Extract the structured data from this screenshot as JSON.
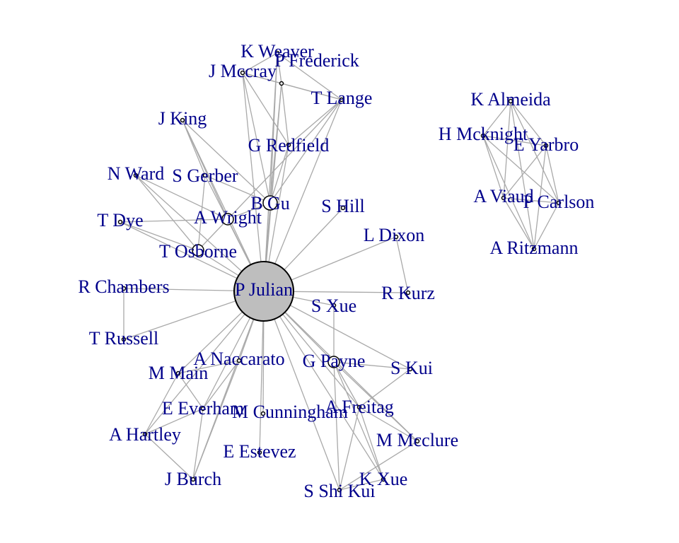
{
  "colors": {
    "edge": "#a9a9a9",
    "label": "#00008b",
    "hub_fill": "#bebebe",
    "node_fill": "#ffffff",
    "node_stroke": "#000000"
  },
  "nodes": [
    {
      "id": "pjulian",
      "label": "P Julian",
      "hub": true
    },
    {
      "id": "kweaver",
      "label": "K Weaver"
    },
    {
      "id": "pfrederick",
      "label": "P Frederick"
    },
    {
      "id": "jmccray",
      "label": "J Mccray"
    },
    {
      "id": "tlange",
      "label": "T Lange"
    },
    {
      "id": "jking",
      "label": "J King"
    },
    {
      "id": "gredfield",
      "label": "G Redfield"
    },
    {
      "id": "nward",
      "label": "N Ward"
    },
    {
      "id": "sgerber",
      "label": "S Gerber"
    },
    {
      "id": "bgu",
      "label": "B Gu"
    },
    {
      "id": "shill",
      "label": "S Hill"
    },
    {
      "id": "tdye",
      "label": "T Dye"
    },
    {
      "id": "awright",
      "label": "A Wright"
    },
    {
      "id": "ldixon",
      "label": "L Dixon"
    },
    {
      "id": "tosborne",
      "label": "T Osborne"
    },
    {
      "id": "rchambers",
      "label": "R Chambers"
    },
    {
      "id": "rkurz",
      "label": "R Kurz"
    },
    {
      "id": "sxue",
      "label": "S Xue"
    },
    {
      "id": "trussell",
      "label": "T Russell"
    },
    {
      "id": "anaccarato",
      "label": "A Naccarato"
    },
    {
      "id": "gpayne",
      "label": "G Payne"
    },
    {
      "id": "skui",
      "label": "S Kui"
    },
    {
      "id": "mmain",
      "label": "M Main"
    },
    {
      "id": "eeverham",
      "label": "E Everham"
    },
    {
      "id": "mcunningham",
      "label": "M Cunningham"
    },
    {
      "id": "afreitag",
      "label": "A Freitag"
    },
    {
      "id": "ahartley",
      "label": "A Hartley"
    },
    {
      "id": "mmcclure",
      "label": "M Mcclure"
    },
    {
      "id": "eestevez",
      "label": "E Estevez"
    },
    {
      "id": "kxue",
      "label": "K Xue"
    },
    {
      "id": "jburch",
      "label": "J Burch"
    },
    {
      "id": "sshikui",
      "label": "S Shi Kui"
    },
    {
      "id": "kalmeida",
      "label": "K Almeida"
    },
    {
      "id": "hmcknight",
      "label": "H Mcknight"
    },
    {
      "id": "eyarbro",
      "label": "E Yarbro"
    },
    {
      "id": "aviaud",
      "label": "A Viaud"
    },
    {
      "id": "pcarlson",
      "label": "P Carlson"
    },
    {
      "id": "aritzmann",
      "label": "A Ritzmann"
    }
  ],
  "edges": [
    [
      "pjulian",
      "jmccray"
    ],
    [
      "pjulian",
      "kweaver"
    ],
    [
      "pjulian",
      "pfrederick"
    ],
    [
      "pjulian",
      "tlange"
    ],
    [
      "pjulian",
      "gredfield"
    ],
    [
      "pjulian",
      "bgu"
    ],
    [
      "pjulian",
      "sgerber"
    ],
    [
      "pjulian",
      "jking"
    ],
    [
      "pjulian",
      "nward"
    ],
    [
      "pjulian",
      "tdye"
    ],
    [
      "pjulian",
      "awright"
    ],
    [
      "pjulian",
      "tosborne"
    ],
    [
      "pjulian",
      "shill"
    ],
    [
      "pjulian",
      "ldixon"
    ],
    [
      "pjulian",
      "rkurz"
    ],
    [
      "pjulian",
      "rchambers"
    ],
    [
      "pjulian",
      "sxue"
    ],
    [
      "pjulian",
      "trussell"
    ],
    [
      "pjulian",
      "anaccarato"
    ],
    [
      "pjulian",
      "gpayne"
    ],
    [
      "pjulian",
      "skui"
    ],
    [
      "pjulian",
      "mmain"
    ],
    [
      "pjulian",
      "eeverham"
    ],
    [
      "pjulian",
      "mcunningham"
    ],
    [
      "pjulian",
      "afreitag"
    ],
    [
      "pjulian",
      "ahartley"
    ],
    [
      "pjulian",
      "mmcclure"
    ],
    [
      "pjulian",
      "eestevez"
    ],
    [
      "pjulian",
      "kxue"
    ],
    [
      "pjulian",
      "jburch"
    ],
    [
      "pjulian",
      "sshikui"
    ],
    [
      "jmccray",
      "kweaver"
    ],
    [
      "jmccray",
      "pfrederick"
    ],
    [
      "jmccray",
      "tlange"
    ],
    [
      "jmccray",
      "gredfield"
    ],
    [
      "jmccray",
      "bgu"
    ],
    [
      "kweaver",
      "pfrederick"
    ],
    [
      "kweaver",
      "tlange"
    ],
    [
      "kweaver",
      "bgu"
    ],
    [
      "pfrederick",
      "tlange"
    ],
    [
      "pfrederick",
      "bgu"
    ],
    [
      "pfrederick",
      "gredfield"
    ],
    [
      "tlange",
      "bgu"
    ],
    [
      "tlange",
      "gredfield"
    ],
    [
      "tlange",
      "awright"
    ],
    [
      "gredfield",
      "bgu"
    ],
    [
      "jking",
      "sgerber"
    ],
    [
      "jking",
      "awright"
    ],
    [
      "jking",
      "bgu"
    ],
    [
      "sgerber",
      "bgu"
    ],
    [
      "sgerber",
      "tosborne"
    ],
    [
      "nward",
      "tosborne"
    ],
    [
      "nward",
      "awright"
    ],
    [
      "tdye",
      "tosborne"
    ],
    [
      "tdye",
      "awright"
    ],
    [
      "awright",
      "tosborne"
    ],
    [
      "awright",
      "bgu"
    ],
    [
      "ldixon",
      "rkurz"
    ],
    [
      "rchambers",
      "trussell"
    ],
    [
      "sxue",
      "gpayne"
    ],
    [
      "gpayne",
      "skui"
    ],
    [
      "gpayne",
      "afreitag"
    ],
    [
      "gpayne",
      "mmcclure"
    ],
    [
      "gpayne",
      "kxue"
    ],
    [
      "gpayne",
      "sshikui"
    ],
    [
      "skui",
      "afreitag"
    ],
    [
      "afreitag",
      "mmcclure"
    ],
    [
      "afreitag",
      "kxue"
    ],
    [
      "kxue",
      "sshikui"
    ],
    [
      "sshikui",
      "mmcclure"
    ],
    [
      "sshikui",
      "afreitag"
    ],
    [
      "mmain",
      "eeverham"
    ],
    [
      "mmain",
      "ahartley"
    ],
    [
      "eeverham",
      "ahartley"
    ],
    [
      "eeverham",
      "jburch"
    ],
    [
      "ahartley",
      "jburch"
    ],
    [
      "anaccarato",
      "eeverham"
    ],
    [
      "anaccarato",
      "mmain"
    ],
    [
      "anaccarato",
      "jburch"
    ],
    [
      "kalmeida",
      "hmcknight"
    ],
    [
      "kalmeida",
      "eyarbro"
    ],
    [
      "kalmeida",
      "aviaud"
    ],
    [
      "kalmeida",
      "pcarlson"
    ],
    [
      "kalmeida",
      "aritzmann"
    ],
    [
      "hmcknight",
      "eyarbro"
    ],
    [
      "hmcknight",
      "aviaud"
    ],
    [
      "hmcknight",
      "pcarlson"
    ],
    [
      "hmcknight",
      "aritzmann"
    ],
    [
      "eyarbro",
      "aviaud"
    ],
    [
      "eyarbro",
      "pcarlson"
    ],
    [
      "eyarbro",
      "aritzmann"
    ],
    [
      "aviaud",
      "pcarlson"
    ],
    [
      "aviaud",
      "aritzmann"
    ],
    [
      "pcarlson",
      "aritzmann"
    ]
  ]
}
